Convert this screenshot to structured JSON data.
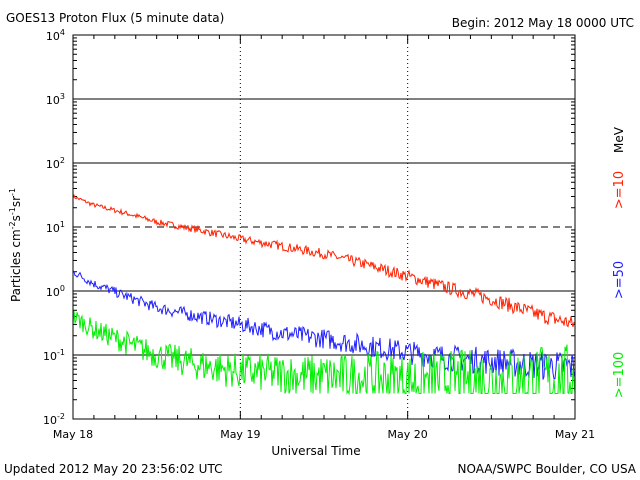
{
  "header": {
    "title": "GOES13 Proton Flux (5 minute data)",
    "begin": "Begin: 2012 May 18 0000 UTC"
  },
  "footer": {
    "updated": "Updated 2012 May 20 23:56:02 UTC",
    "source": "NOAA/SWPC Boulder, CO USA"
  },
  "chart_data": {
    "type": "line",
    "title": "GOES13 Proton Flux (5 minute data)",
    "xlabel": "Universal Time",
    "ylabel": "Particles cm-2s-1sr-1",
    "y_scale": "log",
    "ylim": [
      0.01,
      10000
    ],
    "x_range_days": [
      "May 18",
      "May 21"
    ],
    "x_tick_labels": [
      "May 18",
      "May 19",
      "May 20",
      "May 21"
    ],
    "y_tick_labels": [
      {
        "base": "10",
        "exp": "-2"
      },
      {
        "base": "10",
        "exp": "-1"
      },
      {
        "base": "10",
        "exp": "0"
      },
      {
        "base": "10",
        "exp": "1"
      },
      {
        "base": "10",
        "exp": "2"
      },
      {
        "base": "10",
        "exp": "3"
      },
      {
        "base": "10",
        "exp": "4"
      }
    ],
    "unit_label": "MeV",
    "series": [
      {
        "name": ">=10",
        "color": "#ff2000",
        "x": [
          "2012-05-18 00:00",
          "2012-05-18 03:00",
          "2012-05-18 08:00",
          "2012-05-18 12:00",
          "2012-05-18 18:00",
          "2012-05-19 00:00",
          "2012-05-19 06:00",
          "2012-05-19 12:00",
          "2012-05-19 18:00",
          "2012-05-20 00:00",
          "2012-05-20 06:00",
          "2012-05-20 12:00",
          "2012-05-20 18:00",
          "2012-05-21 00:00"
        ],
        "values": [
          30,
          22,
          16,
          12,
          9,
          6.5,
          5,
          3.8,
          2.6,
          1.7,
          1.1,
          0.75,
          0.45,
          0.3
        ]
      },
      {
        "name": ">=50",
        "color": "#2020ff",
        "x": [
          "2012-05-18 00:00",
          "2012-05-18 03:00",
          "2012-05-18 08:00",
          "2012-05-18 12:00",
          "2012-05-18 18:00",
          "2012-05-19 00:00",
          "2012-05-19 06:00",
          "2012-05-19 12:00",
          "2012-05-19 18:00",
          "2012-05-20 00:00",
          "2012-05-20 06:00",
          "2012-05-20 12:00",
          "2012-05-20 18:00",
          "2012-05-21 00:00"
        ],
        "values": [
          2.0,
          1.3,
          0.8,
          0.55,
          0.4,
          0.3,
          0.22,
          0.18,
          0.14,
          0.11,
          0.09,
          0.08,
          0.07,
          0.065
        ]
      },
      {
        "name": ">=100",
        "color": "#00ee00",
        "x": [
          "2012-05-18 00:00",
          "2012-05-18 03:00",
          "2012-05-18 08:00",
          "2012-05-18 12:00",
          "2012-05-18 18:00",
          "2012-05-19 00:00",
          "2012-05-19 06:00",
          "2012-05-19 12:00",
          "2012-05-19 18:00",
          "2012-05-20 00:00",
          "2012-05-20 06:00",
          "2012-05-20 12:00",
          "2012-05-20 18:00",
          "2012-05-21 00:00"
        ],
        "values": [
          0.4,
          0.25,
          0.15,
          0.1,
          0.07,
          0.055,
          0.05,
          0.045,
          0.045,
          0.04,
          0.04,
          0.04,
          0.04,
          0.04
        ]
      }
    ],
    "grid": {
      "horizontal": true,
      "dashed_decade": "1e1",
      "vertical": "dotted"
    }
  }
}
